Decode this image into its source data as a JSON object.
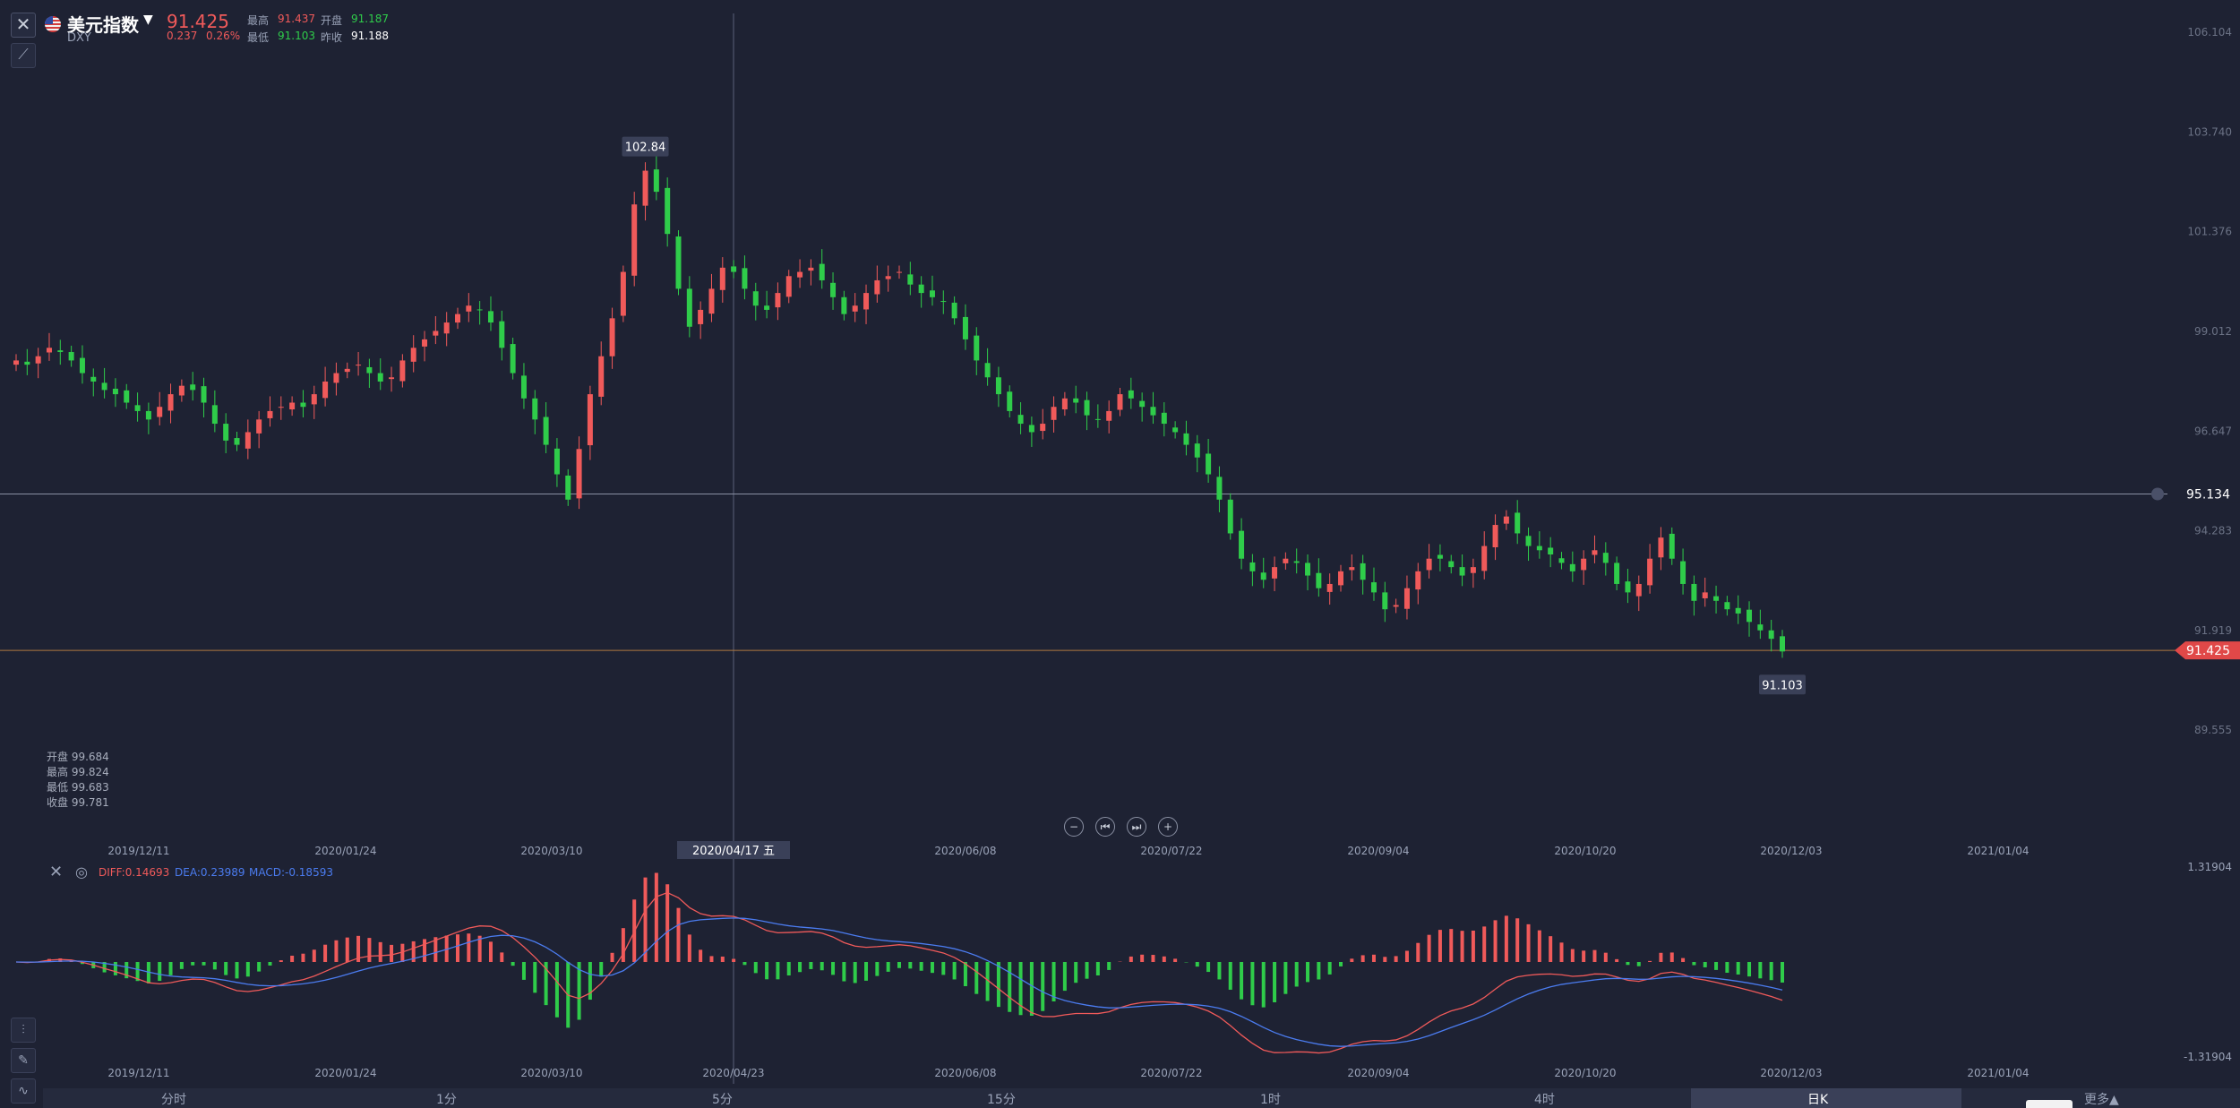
{
  "header": {
    "name": "美元指数",
    "code": "DXY",
    "last": "91.425",
    "change": "0.237",
    "change_pct": "0.26%",
    "high_label": "最高",
    "high": "91.437",
    "open_label": "开盘",
    "open": "91.187",
    "low_label": "最低",
    "low": "91.103",
    "prevclose_label": "昨收",
    "prevclose": "91.188"
  },
  "hover_ohlc": {
    "open": "开盘 99.684",
    "high": "最高 99.824",
    "low": "最低 99.683",
    "close": "收盘 99.781"
  },
  "macd_legend": {
    "diff": "DIFF:0.14693",
    "dea": "DEA:0.23989",
    "macd": "MACD:-0.18593"
  },
  "timeframes": [
    "分时",
    "1分",
    "5分",
    "15分",
    "1时",
    "4时",
    "日K",
    "更多▲"
  ],
  "active_timeframe": "日K",
  "colors": {
    "up": "#f05a5a",
    "down": "#2fcc4a",
    "diff_line": "#f05a5a",
    "dea_line": "#4b7cf0",
    "background": "#1e2233"
  },
  "chart_data": [
    {
      "type": "candlestick",
      "y_ticks": [
        "106.104",
        "103.740",
        "101.376",
        "99.012",
        "96.647",
        "94.283",
        "91.919",
        "89.555"
      ],
      "ylim": [
        88.9,
        106.104
      ],
      "x_ticks": [
        "2019/12/11",
        "2020/01/24",
        "2020/03/10",
        "2020/04/17 五",
        "2020/06/08",
        "2020/07/22",
        "2020/09/04",
        "2020/10/20",
        "2020/12/03",
        "2021/01/04"
      ],
      "crosshair_date": "2020/04/17 五",
      "horizontal_line": "95.134",
      "last_price_line": "91.425",
      "max_marker": "102.84",
      "min_marker": "91.103",
      "close_series": [
        98.3,
        98.2,
        98.4,
        98.6,
        98.5,
        98.3,
        98.0,
        97.8,
        97.6,
        97.5,
        97.3,
        97.1,
        96.9,
        97.2,
        97.5,
        97.7,
        97.6,
        97.3,
        96.8,
        96.4,
        96.3,
        96.6,
        96.9,
        97.1,
        97.2,
        97.3,
        97.2,
        97.5,
        97.8,
        98.0,
        98.1,
        98.2,
        98.0,
        97.8,
        97.9,
        98.3,
        98.6,
        98.8,
        99.0,
        99.2,
        99.4,
        99.6,
        99.5,
        99.2,
        98.6,
        98.0,
        97.4,
        96.9,
        96.3,
        95.6,
        95.0,
        96.2,
        97.5,
        98.4,
        99.3,
        100.4,
        102.0,
        102.8,
        102.3,
        101.3,
        100.0,
        99.1,
        99.5,
        100.0,
        100.5,
        100.4,
        100.0,
        99.6,
        99.5,
        99.9,
        100.3,
        100.4,
        100.5,
        100.2,
        99.8,
        99.4,
        99.6,
        99.9,
        100.2,
        100.3,
        100.4,
        100.1,
        99.9,
        99.8,
        99.7,
        99.3,
        98.8,
        98.3,
        97.9,
        97.5,
        97.1,
        96.8,
        96.6,
        96.8,
        97.2,
        97.4,
        97.3,
        97.0,
        96.9,
        97.1,
        97.5,
        97.4,
        97.2,
        97.0,
        96.8,
        96.6,
        96.3,
        96.0,
        95.6,
        95.0,
        94.2,
        93.6,
        93.3,
        93.1,
        93.4,
        93.6,
        93.5,
        93.2,
        92.9,
        93.0,
        93.3,
        93.4,
        93.1,
        92.8,
        92.4,
        92.5,
        92.9,
        93.3,
        93.6,
        93.6,
        93.4,
        93.2,
        93.4,
        93.9,
        94.4,
        94.6,
        94.2,
        93.9,
        93.8,
        93.7,
        93.5,
        93.3,
        93.6,
        93.8,
        93.5,
        93.0,
        92.8,
        93.0,
        93.6,
        94.1,
        93.6,
        93.0,
        92.6,
        92.8,
        92.6,
        92.4,
        92.3,
        92.1,
        91.9,
        91.7,
        91.4
      ]
    },
    {
      "type": "macd",
      "y_ticks": [
        "1.31904",
        "-1.31904"
      ],
      "ylim": [
        -1.31904,
        1.31904
      ],
      "x_ticks": [
        "2019/12/11",
        "2020/01/24",
        "2020/03/10",
        "2020/04/23",
        "2020/06/08",
        "2020/07/22",
        "2020/09/04",
        "2020/10/20",
        "2020/12/03",
        "2021/01/04"
      ],
      "series": [
        {
          "name": "DIFF"
        },
        {
          "name": "DEA"
        },
        {
          "name": "MACD"
        }
      ]
    }
  ]
}
